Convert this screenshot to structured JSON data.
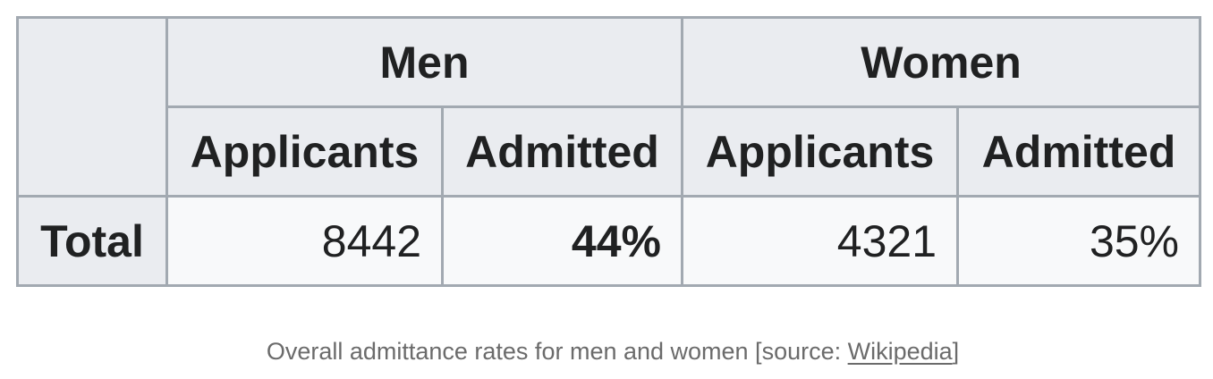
{
  "table": {
    "groups": {
      "men": "Men",
      "women": "Women"
    },
    "subheaders": {
      "men_applicants": "Applicants",
      "men_admitted": "Admitted",
      "women_applicants": "Applicants",
      "women_admitted": "Admitted"
    },
    "rows": [
      {
        "label": "Total",
        "men_applicants": "8442",
        "men_admitted": "44%",
        "women_applicants": "4321",
        "women_admitted": "35%"
      }
    ]
  },
  "caption": {
    "prefix": "Overall admittance rates for men and women [source: ",
    "link_text": "Wikipedia",
    "suffix": "]"
  }
}
